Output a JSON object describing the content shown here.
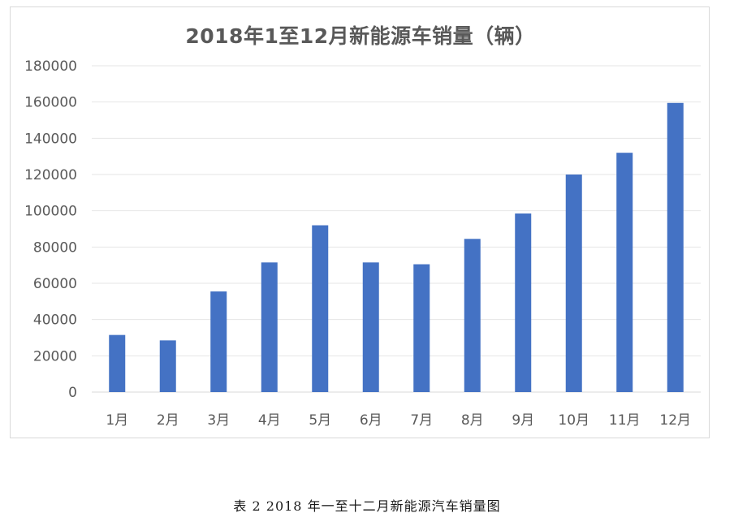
{
  "caption": "表 2 2018 年一至十二月新能源汽车销量图",
  "colors": {
    "bar": "#4472c4",
    "gridline": "#e6e6e6",
    "axis_line": "#d9d9d9",
    "text": "#595959"
  },
  "chart_data": {
    "type": "bar",
    "title": "2018年1至12月新能源车销量（辆）",
    "categories": [
      "1月",
      "2月",
      "3月",
      "4月",
      "5月",
      "6月",
      "7月",
      "8月",
      "9月",
      "10月",
      "11月",
      "12月"
    ],
    "values": [
      31500,
      28500,
      55500,
      71500,
      92000,
      71500,
      70500,
      84500,
      98500,
      120000,
      132000,
      159500
    ],
    "ylim": [
      0,
      180000
    ],
    "yticks": [
      "0",
      "20000",
      "40000",
      "60000",
      "80000",
      "100000",
      "120000",
      "140000",
      "160000",
      "180000"
    ],
    "xlabel": "",
    "ylabel": "",
    "grid": true,
    "legend": "none"
  }
}
